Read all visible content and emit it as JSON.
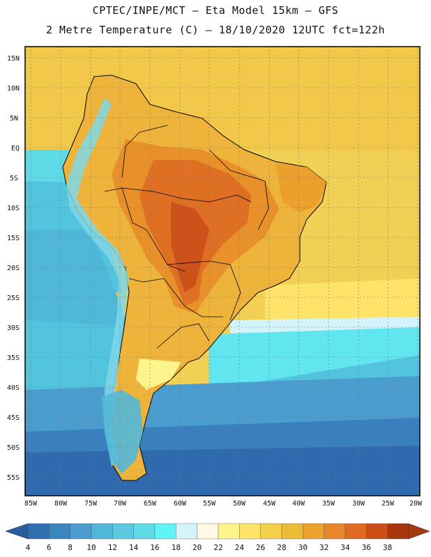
{
  "header": {
    "line1": "CPTEC/INPE/MCT —  Eta Model 15km — GFS",
    "line2": "2 Metre Temperature (C) — 18/10/2020 12UTC fct=122h"
  },
  "map": {
    "lat_labels": [
      "15N",
      "10N",
      "5N",
      "EQ",
      "5S",
      "10S",
      "15S",
      "20S",
      "25S",
      "30S",
      "35S",
      "40S",
      "45S",
      "50S",
      "55S"
    ],
    "lon_labels": [
      "85W",
      "80W",
      "75W",
      "70W",
      "65W",
      "60W",
      "55W",
      "50W",
      "45W",
      "40W",
      "35W",
      "30W",
      "25W",
      "20W"
    ]
  },
  "colorbar": {
    "ticks": [
      "4",
      "6",
      "8",
      "10",
      "12",
      "14",
      "16",
      "18",
      "20",
      "22",
      "24",
      "26",
      "28",
      "30",
      "32",
      "34",
      "36",
      "38"
    ],
    "colors": [
      "#2f6fb0",
      "#3a86c0",
      "#4b9ccf",
      "#52b6d8",
      "#5cc9e0",
      "#5fdbe8",
      "#61f4f4",
      "#d2f4fa",
      "#fff8e4",
      "#fff38c",
      "#fde36a",
      "#f5d04c",
      "#ecbb34",
      "#eda22b",
      "#e8862a",
      "#df6a21",
      "#cc4e19",
      "#a8360f"
    ],
    "under_color": "#2a5b9c",
    "over_color": "#a6380f"
  }
}
